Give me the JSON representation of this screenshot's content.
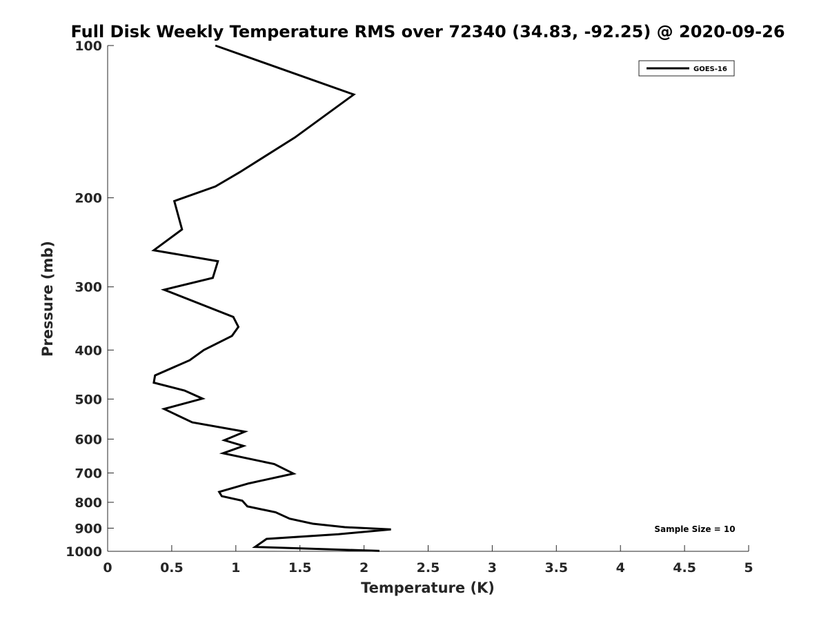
{
  "chart_data": {
    "type": "line",
    "title": "Full Disk Weekly Temperature RMS over 72340 (34.83, -92.25) @ 2020-09-26",
    "xlabel": "Temperature (K)",
    "ylabel": "Pressure (mb)",
    "xlim": [
      0,
      5
    ],
    "ylim": [
      1000,
      100
    ],
    "yscale": "log",
    "y_reversed": true,
    "xticks": [
      0,
      0.5,
      1,
      1.5,
      2,
      2.5,
      3,
      3.5,
      4,
      4.5,
      5
    ],
    "xtick_labels": [
      "0",
      "0.5",
      "1",
      "1.5",
      "2",
      "2.5",
      "3",
      "3.5",
      "4",
      "4.5",
      "5"
    ],
    "yticks": [
      100,
      200,
      300,
      400,
      500,
      600,
      700,
      800,
      900,
      1000
    ],
    "ytick_labels": [
      "100",
      "200",
      "300",
      "400",
      "500",
      "600",
      "700",
      "800",
      "900",
      "1000"
    ],
    "grid": false,
    "legend_position": "top-right",
    "annotation": "Sample Size = 10",
    "series": [
      {
        "name": "GOES-16",
        "color": "#000000",
        "x": [
          0.84,
          1.92,
          1.46,
          1.03,
          0.84,
          0.52,
          0.58,
          0.36,
          0.86,
          0.82,
          0.44,
          0.98,
          1.02,
          0.97,
          0.75,
          0.64,
          0.37,
          0.36,
          0.6,
          0.74,
          0.44,
          0.66,
          1.07,
          0.91,
          1.06,
          0.9,
          1.3,
          1.45,
          1.1,
          0.87,
          0.89,
          1.05,
          1.09,
          1.31,
          1.42,
          1.6,
          1.85,
          2.21,
          1.8,
          1.24,
          1.15,
          2.12
        ],
        "y": [
          100,
          125,
          152,
          178,
          190,
          203,
          231,
          254,
          267,
          288,
          304,
          344,
          360,
          375,
          400,
          419,
          449,
          464,
          481,
          499,
          523,
          556,
          580,
          603,
          619,
          640,
          672,
          702,
          734,
          763,
          778,
          794,
          815,
          837,
          862,
          882,
          896,
          905,
          925,
          945,
          980,
          998
        ]
      }
    ]
  }
}
